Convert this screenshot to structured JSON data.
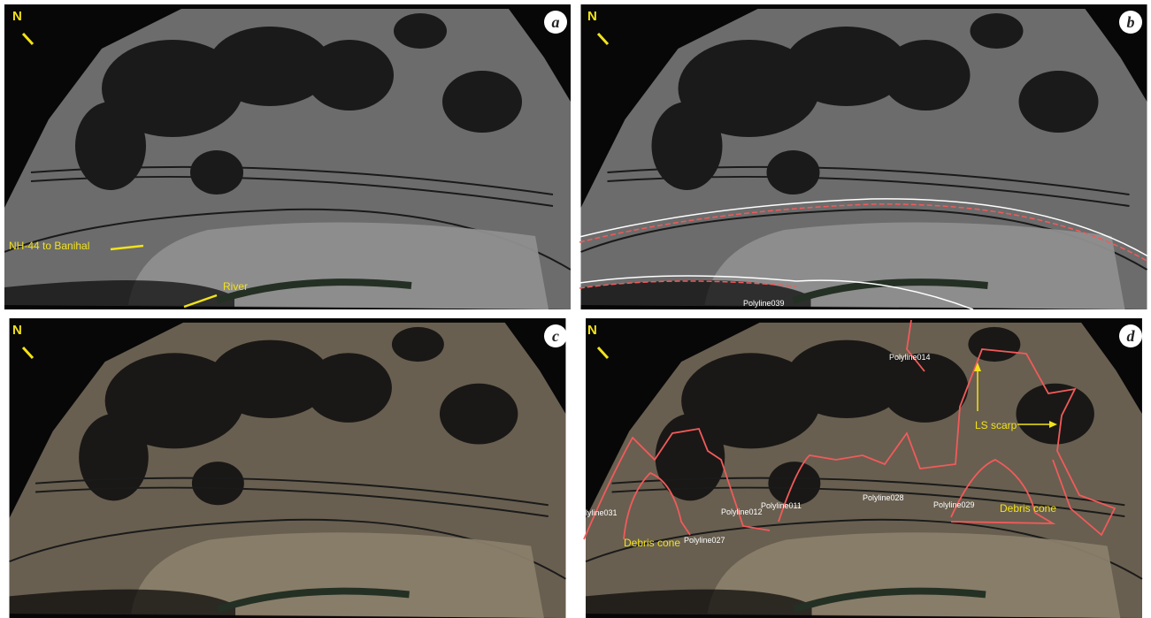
{
  "panels": [
    {
      "label": "a",
      "north": "N",
      "annotations": [
        "NH-44 to Banihal",
        "River"
      ]
    },
    {
      "label": "b",
      "north": "N",
      "annotations": [
        "Polyline039"
      ]
    },
    {
      "label": "c",
      "north": "N",
      "annotations": []
    },
    {
      "label": "d",
      "north": "N",
      "annotations": [
        "Polyline014",
        "olyline031",
        "Polyline012",
        "Polyline011",
        "Polyline028",
        "Polyline029",
        "Polyline027",
        "Debris cone",
        "Debris cone",
        "LS scarp"
      ]
    }
  ]
}
